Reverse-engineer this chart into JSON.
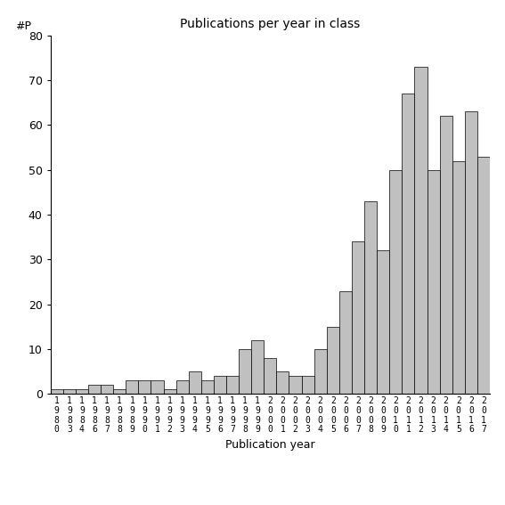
{
  "title": "Publications per year in class",
  "xlabel": "Publication year",
  "ylabel": "#P",
  "ylim": [
    0,
    80
  ],
  "yticks": [
    0,
    10,
    20,
    30,
    40,
    50,
    60,
    70,
    80
  ],
  "bar_color": "#c0c0c0",
  "bar_edgecolor": "#000000",
  "background_color": "#ffffff",
  "years": [
    "1980",
    "1983",
    "1984",
    "1986",
    "1987",
    "1988",
    "1989",
    "1990",
    "1991",
    "1992",
    "1993",
    "1994",
    "1995",
    "1996",
    "1997",
    "1998",
    "1999",
    "2000",
    "2001",
    "2002",
    "2003",
    "2004",
    "2005",
    "2006",
    "2007",
    "2008",
    "2009",
    "2010",
    "2011",
    "2012",
    "2013",
    "2014",
    "2015",
    "2016",
    "2017"
  ],
  "values": [
    1,
    1,
    1,
    2,
    2,
    1,
    3,
    3,
    3,
    1,
    3,
    5,
    3,
    4,
    4,
    10,
    12,
    8,
    5,
    4,
    4,
    10,
    15,
    23,
    34,
    43,
    32,
    50,
    67,
    73,
    50,
    62,
    52,
    63,
    53
  ]
}
